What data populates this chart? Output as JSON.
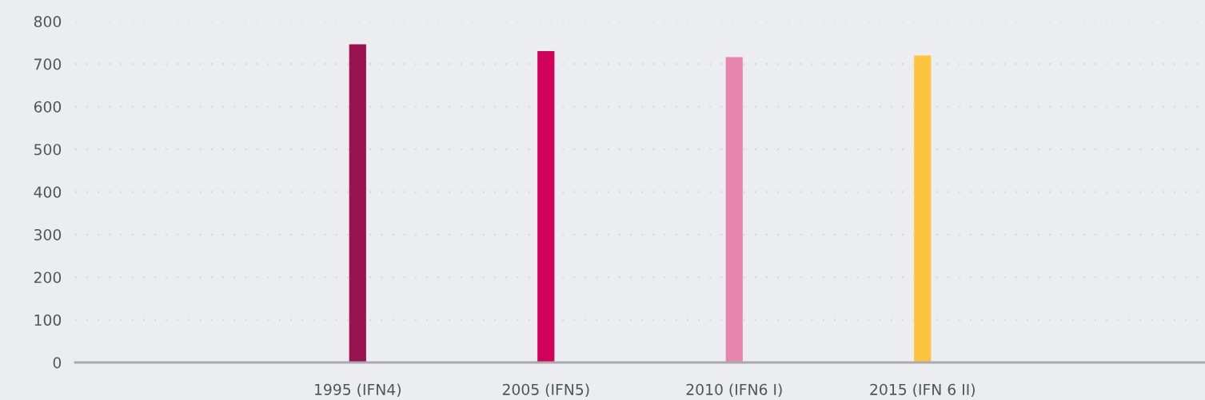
{
  "chart_data": {
    "type": "bar",
    "categories": [
      null,
      "1995 (IFN4)",
      "2005 (IFN5)",
      "2010 (IFN6 I)",
      "2015 (IFN 6 II)",
      null
    ],
    "values": [
      null,
      746,
      730,
      716,
      720,
      null
    ],
    "colors": [
      null,
      "#9a1350",
      "#d1005a",
      "#e884ad",
      "#ffc33d",
      null
    ],
    "ylim": [
      0,
      800
    ],
    "yticks": [
      0,
      100,
      200,
      300,
      400,
      500,
      600,
      700,
      800
    ],
    "grid": "y"
  }
}
